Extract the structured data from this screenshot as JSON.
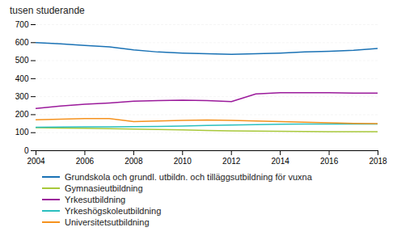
{
  "chart_data": {
    "type": "line",
    "title": "tusen studerande",
    "x": [
      2004,
      2005,
      2006,
      2007,
      2008,
      2009,
      2010,
      2011,
      2012,
      2013,
      2014,
      2015,
      2016,
      2017,
      2018
    ],
    "series": [
      {
        "name": "Grundskola och grundl. utbildn. och tilläggsutbildning för vuxna",
        "color": "#1a72b5",
        "values": [
          600,
          593,
          585,
          577,
          560,
          548,
          542,
          538,
          535,
          538,
          542,
          548,
          552,
          558,
          568
        ]
      },
      {
        "name": "Gymnasieutbildning",
        "color": "#a8c83a",
        "values": [
          128,
          126,
          124,
          122,
          120,
          118,
          115,
          112,
          110,
          109,
          108,
          107,
          106,
          106,
          106
        ]
      },
      {
        "name": "Yrkesutbildning",
        "color": "#9b1a9b",
        "values": [
          235,
          248,
          258,
          265,
          275,
          278,
          280,
          278,
          273,
          315,
          322,
          322,
          322,
          320,
          320
        ]
      },
      {
        "name": "Yrkeshögskoleutbildning",
        "color": "#2abfbf",
        "values": [
          130,
          131,
          132,
          132,
          133,
          135,
          137,
          140,
          143,
          145,
          147,
          148,
          148,
          148,
          148
        ]
      },
      {
        "name": "Universitetsutbildning",
        "color": "#f5921e",
        "values": [
          172,
          175,
          178,
          178,
          162,
          165,
          168,
          170,
          168,
          165,
          162,
          158,
          155,
          152,
          150
        ]
      }
    ],
    "xlim": [
      2004,
      2018
    ],
    "xticks": [
      2004,
      2006,
      2008,
      2010,
      2012,
      2014,
      2016,
      2018
    ],
    "ylim": [
      0,
      700
    ],
    "yticks": [
      0,
      100,
      200,
      300,
      400,
      500,
      600,
      700
    ],
    "grid": true,
    "legend": "bottom"
  }
}
